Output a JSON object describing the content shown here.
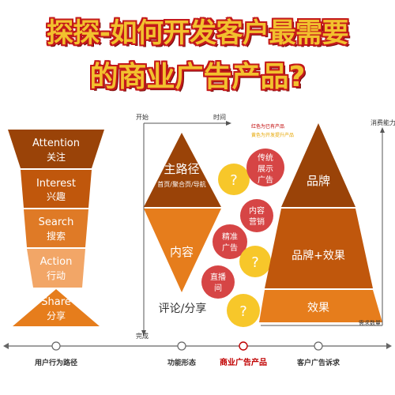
{
  "header": {
    "title_line1": "探探-如何开发客户最需要",
    "title_line2": "的商业广告产品?"
  },
  "funnel": {
    "layers": [
      {
        "en": "Attention",
        "cn": "关注"
      },
      {
        "en": "Interest",
        "cn": "兴趣"
      },
      {
        "en": "Search",
        "cn": "搜索"
      },
      {
        "en": "Action",
        "cn": "行动"
      },
      {
        "en": "Share",
        "cn": "分享"
      }
    ]
  },
  "diamond": {
    "top_title": "主路径",
    "top_sub": "首页/聚合页/导航",
    "middle": "内容",
    "bottom": "评论/分享"
  },
  "axis_labels": {
    "start": "开始",
    "time": "时间",
    "complete": "完成",
    "consumption": "消费能力",
    "demand": "需求数量"
  },
  "legend": {
    "red_item": "红色为已有产品",
    "yellow_item": "黄色为开发提升产品"
  },
  "circles": {
    "red": [
      "传统展示广告",
      "内容营销",
      "精准广告",
      "直播间"
    ],
    "question_mark": "?"
  },
  "pyramid": {
    "levels": [
      "品牌",
      "品牌+效果",
      "效果"
    ]
  },
  "bottom_axis": {
    "labels": [
      "用户行为路径",
      "功能形态",
      "商业广告产品",
      "客户广告诉求"
    ]
  },
  "colors": {
    "dark_brown": "#9a4308",
    "orange": "#d9650f",
    "light_orange": "#ef9a4e",
    "red_circle": "#d64545",
    "yellow_circle": "#f7c72a",
    "title_fill": "#f2c12e",
    "title_stroke": "#c4191a",
    "highlight_text": "#c00000"
  }
}
